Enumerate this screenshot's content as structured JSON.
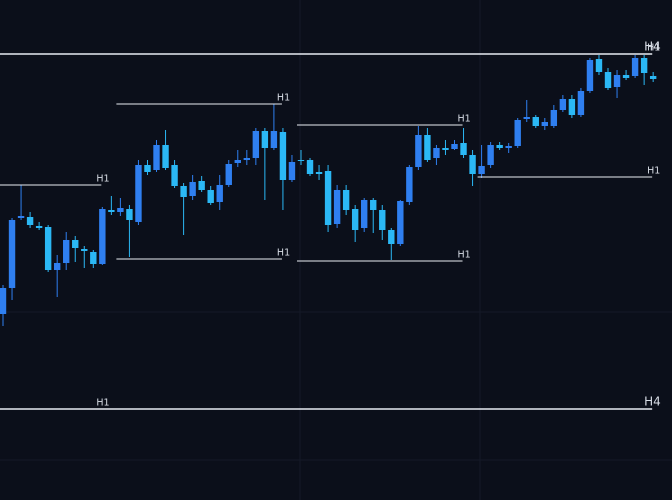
{
  "chart_data": {
    "type": "candlestick",
    "ylim": [
      0,
      500
    ],
    "up_color": "#2f7ff0",
    "down_color": "#2bb8f5",
    "level_color": "#e8ecf2",
    "open": [
      186,
      212,
      282,
      283,
      274,
      273,
      230,
      237,
      260,
      251,
      248,
      236,
      290,
      288,
      291,
      278,
      335,
      330,
      355,
      335,
      314,
      304,
      319,
      310,
      298,
      315,
      337,
      340,
      342,
      369,
      352,
      368,
      320,
      340,
      340,
      328,
      329,
      276,
      310,
      291,
      272,
      300,
      290,
      270,
      256,
      298,
      333,
      365,
      342,
      352,
      351,
      357,
      345,
      326,
      335,
      355,
      352,
      354,
      381,
      383,
      374,
      374,
      390,
      401,
      385,
      409,
      441,
      428,
      413,
      425,
      424,
      442,
      424
    ],
    "high": [
      215,
      282,
      315,
      288,
      278,
      275,
      245,
      268,
      264,
      254,
      250,
      293,
      304,
      302,
      295,
      340,
      340,
      360,
      370,
      340,
      317,
      325,
      324,
      314,
      325,
      340,
      350,
      350,
      372,
      372,
      396,
      372,
      345,
      350,
      342,
      335,
      335,
      315,
      315,
      295,
      302,
      302,
      295,
      272,
      300,
      335,
      374,
      372,
      355,
      360,
      360,
      372,
      350,
      355,
      358,
      358,
      357,
      382,
      400,
      385,
      382,
      395,
      405,
      405,
      412,
      442,
      445,
      432,
      430,
      430,
      445,
      445,
      428
    ],
    "low": [
      174,
      200,
      280,
      272,
      270,
      228,
      203,
      230,
      238,
      232,
      232,
      235,
      285,
      284,
      243,
      275,
      325,
      328,
      330,
      312,
      265,
      300,
      308,
      295,
      290,
      313,
      333,
      335,
      335,
      300,
      350,
      290,
      318,
      335,
      324,
      320,
      268,
      272,
      285,
      258,
      268,
      267,
      260,
      240,
      254,
      295,
      330,
      338,
      335,
      345,
      350,
      342,
      314,
      322,
      332,
      350,
      347,
      352,
      378,
      372,
      370,
      372,
      388,
      382,
      383,
      407,
      425,
      410,
      402,
      420,
      422,
      415,
      418
    ],
    "close": [
      212,
      280,
      284,
      275,
      272,
      230,
      237,
      260,
      252,
      249,
      236,
      291,
      288,
      292,
      280,
      335,
      328,
      355,
      332,
      314,
      303,
      318,
      310,
      297,
      315,
      336,
      340,
      342,
      369,
      352,
      369,
      320,
      338,
      339,
      326,
      326,
      275,
      310,
      290,
      270,
      300,
      290,
      270,
      256,
      299,
      333,
      365,
      340,
      352,
      350,
      356,
      345,
      326,
      334,
      355,
      352,
      354,
      380,
      383,
      374,
      378,
      390,
      401,
      385,
      409,
      440,
      428,
      412,
      425,
      422,
      442,
      427,
      421
    ],
    "levels": [
      {
        "label": "H4",
        "value": 446,
        "start": 0,
        "end": 72
      },
      {
        "label": "H1",
        "value": 446,
        "start": 66,
        "end": 72
      },
      {
        "label": "H1",
        "value": 315,
        "start": 0,
        "end": 11
      },
      {
        "label": "H1",
        "value": 396,
        "start": 13,
        "end": 31
      },
      {
        "label": "H1",
        "value": 241,
        "start": 13,
        "end": 31
      },
      {
        "label": "H1",
        "value": 375,
        "start": 33,
        "end": 51
      },
      {
        "label": "H1",
        "value": 239,
        "start": 33,
        "end": 51
      },
      {
        "label": "H1",
        "value": 323,
        "start": 53,
        "end": 72
      },
      {
        "label": "H1",
        "value": 91,
        "start": 0,
        "end": 11
      },
      {
        "label": "H4",
        "value": 91,
        "start": 0,
        "end": 72
      }
    ]
  }
}
